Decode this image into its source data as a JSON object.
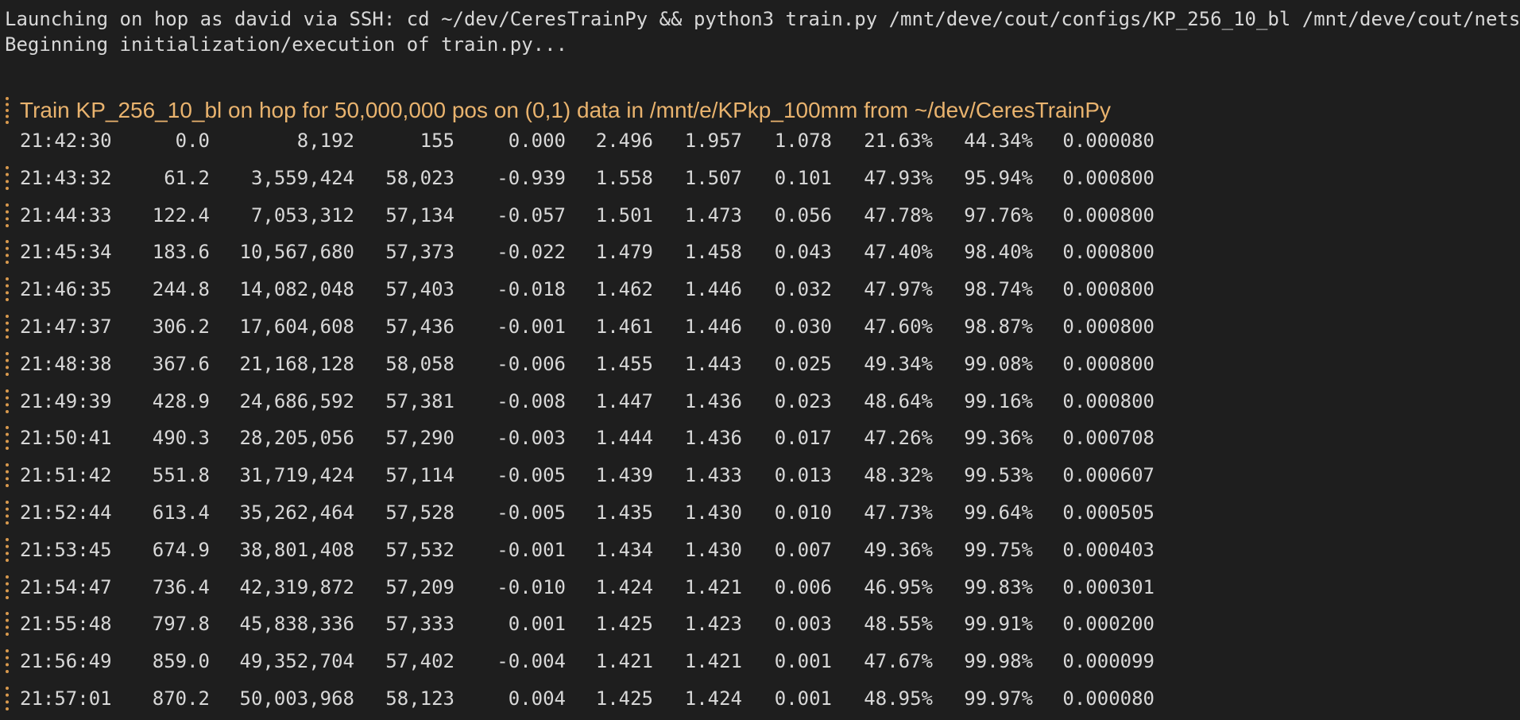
{
  "terminal": {
    "launch_line": "Launching on hop as david via SSH: cd ~/dev/CeresTrainPy && python3 train.py /mnt/deve/cout/configs/KP_256_10_bl /mnt/deve/cout/nets",
    "init_line": "Beginning initialization/execution of train.py...",
    "title": "Train KP_256_10_bl on hop for 50,000,000 pos on (0,1) data in /mnt/e/KPkp_100mm from ~/dev/CeresTrainPy"
  },
  "rows": [
    [
      "21:42:30",
      "0.0",
      "8,192",
      "155",
      "0.000",
      "2.496",
      "1.957",
      "1.078",
      "21.63%",
      "44.34%",
      "0.000080"
    ],
    [
      "21:43:32",
      "61.2",
      "3,559,424",
      "58,023",
      "-0.939",
      "1.558",
      "1.507",
      "0.101",
      "47.93%",
      "95.94%",
      "0.000800"
    ],
    [
      "21:44:33",
      "122.4",
      "7,053,312",
      "57,134",
      "-0.057",
      "1.501",
      "1.473",
      "0.056",
      "47.78%",
      "97.76%",
      "0.000800"
    ],
    [
      "21:45:34",
      "183.6",
      "10,567,680",
      "57,373",
      "-0.022",
      "1.479",
      "1.458",
      "0.043",
      "47.40%",
      "98.40%",
      "0.000800"
    ],
    [
      "21:46:35",
      "244.8",
      "14,082,048",
      "57,403",
      "-0.018",
      "1.462",
      "1.446",
      "0.032",
      "47.97%",
      "98.74%",
      "0.000800"
    ],
    [
      "21:47:37",
      "306.2",
      "17,604,608",
      "57,436",
      "-0.001",
      "1.461",
      "1.446",
      "0.030",
      "47.60%",
      "98.87%",
      "0.000800"
    ],
    [
      "21:48:38",
      "367.6",
      "21,168,128",
      "58,058",
      "-0.006",
      "1.455",
      "1.443",
      "0.025",
      "49.34%",
      "99.08%",
      "0.000800"
    ],
    [
      "21:49:39",
      "428.9",
      "24,686,592",
      "57,381",
      "-0.008",
      "1.447",
      "1.436",
      "0.023",
      "48.64%",
      "99.16%",
      "0.000800"
    ],
    [
      "21:50:41",
      "490.3",
      "28,205,056",
      "57,290",
      "-0.003",
      "1.444",
      "1.436",
      "0.017",
      "47.26%",
      "99.36%",
      "0.000708"
    ],
    [
      "21:51:42",
      "551.8",
      "31,719,424",
      "57,114",
      "-0.005",
      "1.439",
      "1.433",
      "0.013",
      "48.32%",
      "99.53%",
      "0.000607"
    ],
    [
      "21:52:44",
      "613.4",
      "35,262,464",
      "57,528",
      "-0.005",
      "1.435",
      "1.430",
      "0.010",
      "47.73%",
      "99.64%",
      "0.000505"
    ],
    [
      "21:53:45",
      "674.9",
      "38,801,408",
      "57,532",
      "-0.001",
      "1.434",
      "1.430",
      "0.007",
      "49.36%",
      "99.75%",
      "0.000403"
    ],
    [
      "21:54:47",
      "736.4",
      "42,319,872",
      "57,209",
      "-0.010",
      "1.424",
      "1.421",
      "0.006",
      "46.95%",
      "99.83%",
      "0.000301"
    ],
    [
      "21:55:48",
      "797.8",
      "45,838,336",
      "57,333",
      "0.001",
      "1.425",
      "1.423",
      "0.003",
      "48.55%",
      "99.91%",
      "0.000200"
    ],
    [
      "21:56:49",
      "859.0",
      "49,352,704",
      "57,402",
      "-0.004",
      "1.421",
      "1.421",
      "0.001",
      "47.67%",
      "99.98%",
      "0.000099"
    ],
    [
      "21:57:01",
      "870.2",
      "50,003,968",
      "58,123",
      "0.004",
      "1.425",
      "1.424",
      "0.001",
      "48.95%",
      "99.97%",
      "0.000080"
    ]
  ],
  "colors": {
    "background": "#1e1e1e",
    "text": "#d8d8d8",
    "title": "#e9b36e",
    "gutter": "#d99a4e"
  }
}
